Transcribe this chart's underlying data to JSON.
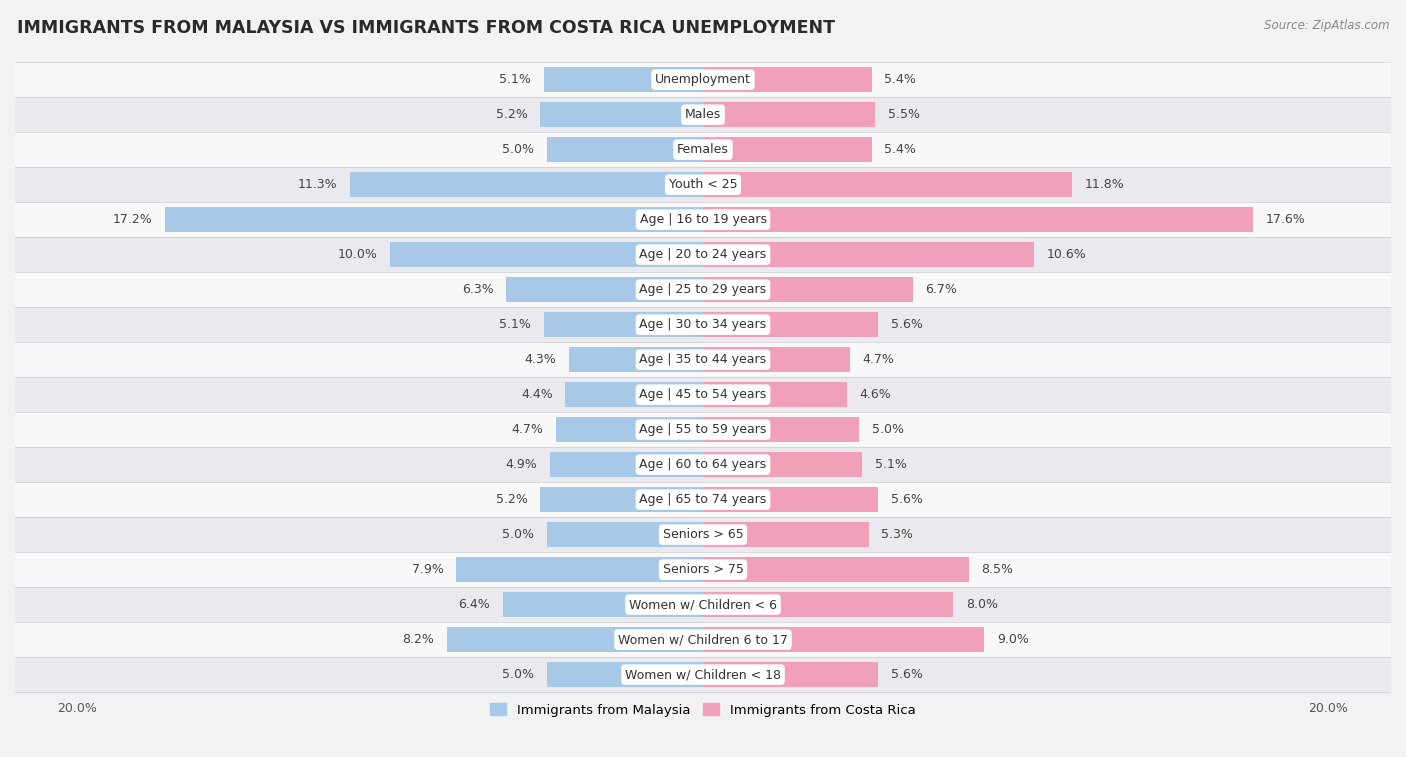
{
  "title": "IMMIGRANTS FROM MALAYSIA VS IMMIGRANTS FROM COSTA RICA UNEMPLOYMENT",
  "source": "Source: ZipAtlas.com",
  "categories": [
    "Unemployment",
    "Males",
    "Females",
    "Youth < 25",
    "Age | 16 to 19 years",
    "Age | 20 to 24 years",
    "Age | 25 to 29 years",
    "Age | 30 to 34 years",
    "Age | 35 to 44 years",
    "Age | 45 to 54 years",
    "Age | 55 to 59 years",
    "Age | 60 to 64 years",
    "Age | 65 to 74 years",
    "Seniors > 65",
    "Seniors > 75",
    "Women w/ Children < 6",
    "Women w/ Children 6 to 17",
    "Women w/ Children < 18"
  ],
  "malaysia_values": [
    5.1,
    5.2,
    5.0,
    11.3,
    17.2,
    10.0,
    6.3,
    5.1,
    4.3,
    4.4,
    4.7,
    4.9,
    5.2,
    5.0,
    7.9,
    6.4,
    8.2,
    5.0
  ],
  "costarica_values": [
    5.4,
    5.5,
    5.4,
    11.8,
    17.6,
    10.6,
    6.7,
    5.6,
    4.7,
    4.6,
    5.0,
    5.1,
    5.6,
    5.3,
    8.5,
    8.0,
    9.0,
    5.6
  ],
  "malaysia_color": "#a8c8e8",
  "costarica_color": "#f0a0b8",
  "row_bg_even": "#f0f0f0",
  "row_bg_odd": "#e0e0e8",
  "axis_limit": 20.0,
  "legend_malaysia": "Immigrants from Malaysia",
  "legend_costarica": "Immigrants from Costa Rica",
  "bar_height": 0.72,
  "label_fontsize": 9.0,
  "title_fontsize": 12.5,
  "source_fontsize": 8.5
}
